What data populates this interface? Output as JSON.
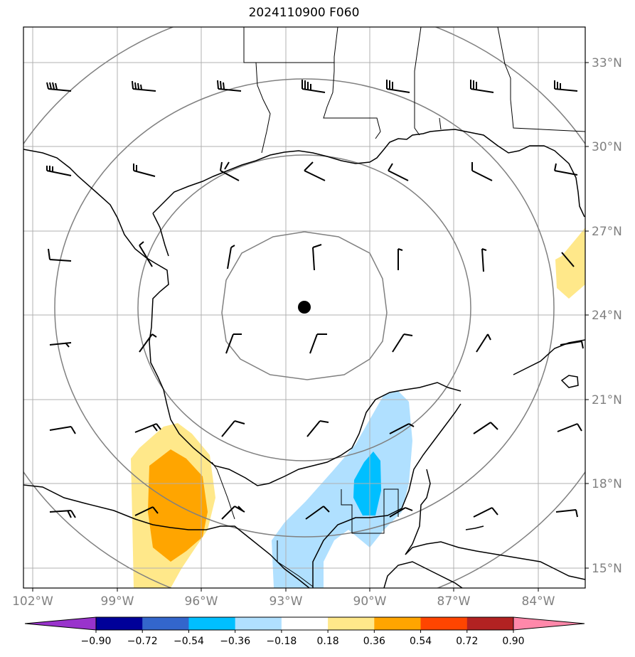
{
  "title": "2024110900 F060",
  "lat_labels": [
    "33°N",
    "30°N",
    "27°N",
    "24°N",
    "21°N",
    "18°N",
    "15°N"
  ],
  "lon_labels": [
    "102°W",
    "99°W",
    "96°W",
    "93°W",
    "90°W",
    "87°W",
    "84°W"
  ],
  "storm_center": {
    "lat": 24.3,
    "lon": -92.4
  },
  "colorbar": {
    "labels": [
      "−0.90",
      "−0.72",
      "−0.54",
      "−0.36",
      "−0.18",
      "0.18",
      "0.36",
      "0.54",
      "0.72",
      "0.90"
    ],
    "colors": [
      "#9933cc",
      "#000099",
      "#3366cc",
      "#00bfff",
      "#b0e0ff",
      "#ffffff",
      "#ffe88a",
      "#ffa500",
      "#ff4500",
      "#b22222",
      "#ff88aa"
    ]
  }
}
